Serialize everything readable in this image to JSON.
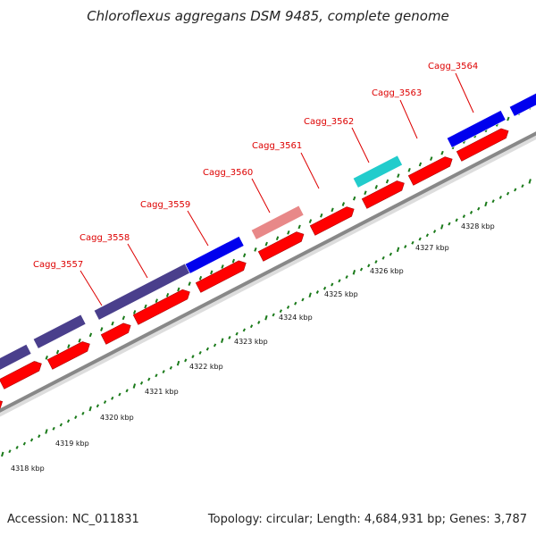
{
  "title": "Chloroflexus aggregans DSM 9485, complete genome",
  "footer": {
    "accession": "Accession: NC_011831",
    "summary": "Topology: circular; Length: 4,684,931 bp; Genes: 3,787"
  },
  "colors": {
    "gene_label": "#dd0000",
    "reverse_cds": "#ff0000",
    "forward_navy": "#4a3f8c",
    "forward_blue": "#0000ee",
    "forward_pink": "#e88888",
    "forward_cyan": "#22cccc",
    "backbone": "#888888",
    "tick": "#1a7a1a"
  },
  "gene_labels": [
    {
      "name": "Cagg_3557"
    },
    {
      "name": "Cagg_3558"
    },
    {
      "name": "Cagg_3559"
    },
    {
      "name": "Cagg_3560"
    },
    {
      "name": "Cagg_3561"
    },
    {
      "name": "Cagg_3562"
    },
    {
      "name": "Cagg_3563"
    },
    {
      "name": "Cagg_3564"
    }
  ],
  "forward_features": [
    {
      "color": "forward_navy"
    },
    {
      "color": "forward_navy"
    },
    {
      "color": "forward_navy"
    },
    {
      "color": "forward_blue"
    },
    {
      "color": "forward_pink"
    },
    {
      "color": "forward_cyan"
    },
    {
      "color": "forward_blue"
    },
    {
      "color": "forward_blue"
    }
  ],
  "reverse_feature_count": 11,
  "scale_labels": [
    "4318 kbp",
    "4319 kbp",
    "4320 kbp",
    "4321 kbp",
    "4322 kbp",
    "4323 kbp",
    "4324 kbp",
    "4325 kbp",
    "4326 kbp",
    "4327 kbp",
    "4328 kbp"
  ]
}
